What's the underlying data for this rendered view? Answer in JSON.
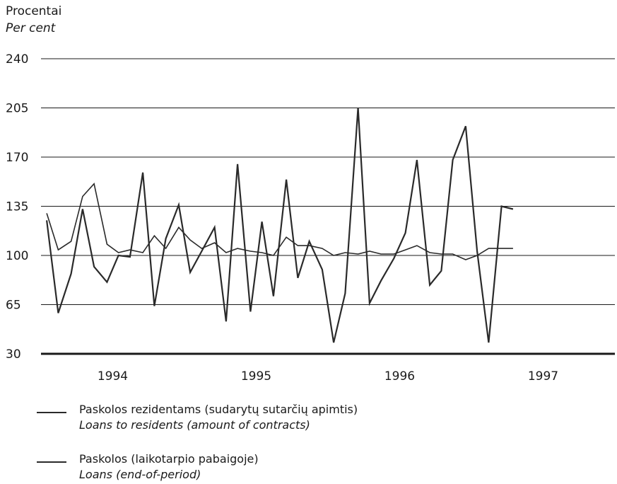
{
  "chart_data": {
    "type": "line",
    "ylabel_lt": "Procentai",
    "ylabel_en": "Per cent",
    "ylim": [
      30,
      240
    ],
    "yticks": [
      240,
      205,
      170,
      135,
      100,
      65,
      30
    ],
    "xlim": [
      1993.5,
      1997.5
    ],
    "xticks": [
      1994,
      1995,
      1996,
      1997
    ],
    "grid": "horizontal",
    "series": [
      {
        "name": "Paskolos rezidentams (sudarytų sutarčių apimtis)",
        "name_en": "Loans to residents (amount of contracts)",
        "color": "#2a2a2a",
        "x": [
          1993.54,
          1993.62,
          1993.71,
          1993.79,
          1993.87,
          1993.96,
          1994.04,
          1994.12,
          1994.21,
          1994.29,
          1994.37,
          1994.46,
          1994.54,
          1994.62,
          1994.71,
          1994.79,
          1994.87,
          1994.96,
          1995.04,
          1995.12,
          1995.21,
          1995.29,
          1995.37,
          1995.46,
          1995.54,
          1995.62,
          1995.71,
          1995.79,
          1995.87,
          1995.96,
          1996.04,
          1996.12,
          1996.21,
          1996.29,
          1996.37,
          1996.46,
          1996.54,
          1996.62,
          1996.71,
          1996.79
        ],
        "values": [
          125,
          59,
          87,
          133,
          92,
          81,
          100,
          99,
          159,
          64,
          112,
          136,
          88,
          103,
          120,
          53,
          165,
          60,
          124,
          71,
          154,
          84,
          110,
          90,
          38,
          73,
          205,
          66,
          82,
          98,
          116,
          168,
          79,
          89,
          168,
          192,
          103,
          38,
          135,
          133
        ]
      },
      {
        "name": "Paskolos (laikotarpio pabaigoje)",
        "name_en": "Loans (end-of-period)",
        "color": "#2a2a2a",
        "x": [
          1993.54,
          1993.62,
          1993.71,
          1993.79,
          1993.87,
          1993.96,
          1994.04,
          1994.12,
          1994.21,
          1994.29,
          1994.37,
          1994.46,
          1994.54,
          1994.62,
          1994.71,
          1994.79,
          1994.87,
          1994.96,
          1995.04,
          1995.12,
          1995.21,
          1995.29,
          1995.37,
          1995.46,
          1995.54,
          1995.62,
          1995.71,
          1995.79,
          1995.87,
          1995.96,
          1996.04,
          1996.12,
          1996.21,
          1996.29,
          1996.37,
          1996.46,
          1996.54,
          1996.62,
          1996.71,
          1996.79
        ],
        "values": [
          130,
          104,
          110,
          142,
          151,
          108,
          102,
          104,
          102,
          114,
          105,
          120,
          111,
          105,
          109,
          102,
          105,
          103,
          102,
          100,
          113,
          107,
          107,
          105,
          100,
          102,
          101,
          103,
          101,
          101,
          104,
          107,
          102,
          101,
          101,
          97,
          100,
          105,
          105,
          105
        ]
      }
    ]
  }
}
